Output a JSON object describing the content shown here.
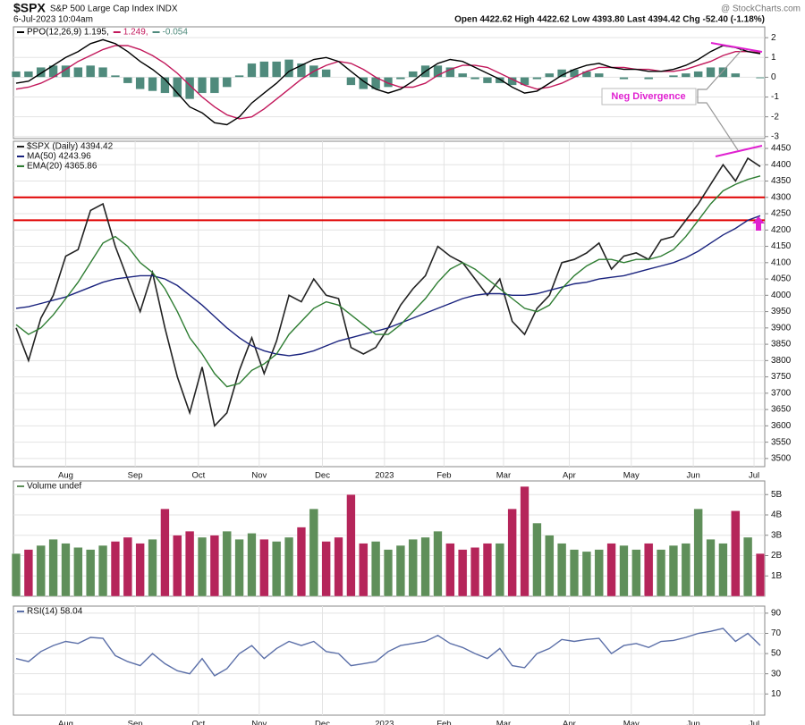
{
  "header": {
    "symbol": "$SPX",
    "name": "S&P 500 Large Cap Index INDX",
    "date": "6-Jul-2023 10:04am",
    "quote": "Open 4422.62  High 4422.62  Low 4393.80  Last 4394.42  Chg -52.40 (-1.18%)",
    "source": "@ StockCharts.com"
  },
  "chart_data": [
    {
      "type": "line",
      "legend": "row",
      "annotation": "Neg Divergence",
      "xlim": [
        0,
        60
      ],
      "ylim": [
        -3.1,
        2.55
      ],
      "yticks": [
        -3,
        -2,
        -1,
        0,
        1,
        2
      ],
      "grid": true,
      "series": [
        {
          "name": "-0.054",
          "type": "bar",
          "color": "#4f8a7c",
          "values": [
            0.3,
            0.3,
            0.5,
            0.6,
            0.6,
            0.5,
            0.6,
            0.5,
            0.1,
            -0.3,
            -0.6,
            -0.7,
            -0.8,
            -1.0,
            -1.1,
            -0.8,
            -0.8,
            -0.5,
            0.1,
            0.7,
            0.8,
            0.8,
            0.9,
            0.7,
            0.6,
            0.4,
            0.0,
            -0.4,
            -0.6,
            -0.6,
            -0.5,
            -0.1,
            0.3,
            0.6,
            0.6,
            0.5,
            0.2,
            -0.1,
            -0.3,
            -0.3,
            -0.4,
            -0.4,
            -0.1,
            0.2,
            0.4,
            0.4,
            0.3,
            0.2,
            0.0,
            -0.1,
            0.0,
            -0.1,
            0.0,
            0.1,
            0.2,
            0.3,
            0.5,
            0.5,
            0.2,
            0.0,
            -0.054
          ]
        },
        {
          "name": "1.249,",
          "type": "line",
          "color": "#c2185b",
          "values": [
            -0.6,
            -0.5,
            -0.3,
            0.0,
            0.4,
            0.8,
            1.1,
            1.4,
            1.6,
            1.6,
            1.4,
            1.1,
            0.7,
            0.2,
            -0.4,
            -1.0,
            -1.5,
            -1.9,
            -2.1,
            -2.0,
            -1.6,
            -1.1,
            -0.6,
            -0.1,
            0.3,
            0.6,
            0.8,
            0.7,
            0.4,
            0.0,
            -0.3,
            -0.5,
            -0.5,
            -0.3,
            0.1,
            0.4,
            0.6,
            0.6,
            0.5,
            0.2,
            -0.1,
            -0.4,
            -0.6,
            -0.5,
            -0.3,
            0.0,
            0.3,
            0.5,
            0.5,
            0.5,
            0.4,
            0.4,
            0.3,
            0.3,
            0.4,
            0.6,
            0.8,
            1.1,
            1.3,
            1.3,
            1.249
          ]
        },
        {
          "name": "PPO(12,26,9) 1.195,",
          "type": "line",
          "color": "#000000",
          "values": [
            -0.3,
            -0.2,
            0.2,
            0.6,
            1.0,
            1.3,
            1.7,
            1.9,
            1.7,
            1.3,
            0.8,
            0.4,
            -0.1,
            -0.8,
            -1.5,
            -1.8,
            -2.3,
            -2.4,
            -2.0,
            -1.3,
            -0.8,
            -0.3,
            0.3,
            0.6,
            0.9,
            1.0,
            0.8,
            0.3,
            -0.2,
            -0.6,
            -0.8,
            -0.6,
            -0.2,
            0.3,
            0.7,
            0.9,
            0.8,
            0.5,
            0.2,
            -0.1,
            -0.5,
            -0.8,
            -0.7,
            -0.3,
            0.1,
            0.4,
            0.6,
            0.7,
            0.5,
            0.4,
            0.4,
            0.3,
            0.3,
            0.4,
            0.6,
            0.9,
            1.3,
            1.6,
            1.5,
            1.3,
            1.195
          ]
        }
      ]
    },
    {
      "type": "line",
      "legend": "column",
      "xlim": [
        0,
        60
      ],
      "ylim": [
        3475,
        4472
      ],
      "yticks": [
        3500,
        3550,
        3600,
        3650,
        3700,
        3750,
        3800,
        3850,
        3900,
        3950,
        4000,
        4050,
        4100,
        4150,
        4200,
        4250,
        4300,
        4350,
        4400,
        4450
      ],
      "grid": true,
      "xticks": [
        {
          "value": 4,
          "label": "Aug"
        },
        {
          "value": 9.6,
          "label": "Sep"
        },
        {
          "value": 14.7,
          "label": "Oct"
        },
        {
          "value": 19.6,
          "label": "Nov"
        },
        {
          "value": 24.7,
          "label": "Dec"
        },
        {
          "value": 29.7,
          "label": "2023"
        },
        {
          "value": 34.5,
          "label": "Feb"
        },
        {
          "value": 39.3,
          "label": "Mar"
        },
        {
          "value": 44.6,
          "label": "Apr"
        },
        {
          "value": 49.6,
          "label": "May"
        },
        {
          "value": 54.6,
          "label": "Jun"
        },
        {
          "value": 59.5,
          "label": "Jul"
        }
      ],
      "hlines": [
        {
          "value": 4300,
          "color": "#e00000"
        },
        {
          "value": 4230,
          "color": "#e00000"
        }
      ],
      "series": [
        {
          "name": "$SPX (Daily) 4394.42",
          "type": "line",
          "color": "#222222",
          "values": [
            3900,
            3800,
            3930,
            4000,
            4120,
            4140,
            4260,
            4280,
            4150,
            4050,
            3950,
            4070,
            3900,
            3750,
            3640,
            3780,
            3600,
            3640,
            3770,
            3870,
            3760,
            3860,
            4000,
            3980,
            4050,
            4000,
            3990,
            3840,
            3820,
            3840,
            3900,
            3970,
            4020,
            4060,
            4150,
            4120,
            4100,
            4050,
            4000,
            4050,
            3920,
            3880,
            3960,
            4000,
            4100,
            4110,
            4130,
            4160,
            4080,
            4120,
            4130,
            4110,
            4170,
            4180,
            4230,
            4280,
            4340,
            4400,
            4350,
            4420,
            4394.42
          ]
        },
        {
          "name": "MA(50) 4243.96",
          "type": "line",
          "color": "#1a237e",
          "values": [
            3960,
            3965,
            3975,
            3985,
            3995,
            4010,
            4025,
            4040,
            4050,
            4055,
            4060,
            4060,
            4050,
            4030,
            4000,
            3970,
            3935,
            3900,
            3870,
            3845,
            3830,
            3820,
            3815,
            3820,
            3830,
            3845,
            3860,
            3870,
            3880,
            3890,
            3900,
            3915,
            3930,
            3945,
            3960,
            3975,
            3990,
            4000,
            4005,
            4005,
            4000,
            4000,
            4005,
            4015,
            4025,
            4035,
            4040,
            4050,
            4055,
            4060,
            4070,
            4080,
            4090,
            4100,
            4115,
            4135,
            4160,
            4185,
            4205,
            4230,
            4243.96
          ]
        },
        {
          "name": "EMA(20) 4365.86",
          "type": "line",
          "color": "#2e7d32",
          "values": [
            3910,
            3880,
            3900,
            3940,
            3990,
            4040,
            4100,
            4160,
            4180,
            4150,
            4100,
            4070,
            4020,
            3950,
            3870,
            3820,
            3760,
            3720,
            3730,
            3770,
            3790,
            3820,
            3880,
            3920,
            3960,
            3980,
            3970,
            3940,
            3910,
            3880,
            3880,
            3910,
            3950,
            3990,
            4040,
            4080,
            4100,
            4080,
            4050,
            4020,
            3990,
            3960,
            3950,
            3970,
            4020,
            4060,
            4090,
            4110,
            4110,
            4100,
            4110,
            4110,
            4120,
            4140,
            4180,
            4230,
            4280,
            4320,
            4340,
            4355,
            4365.86
          ]
        }
      ]
    },
    {
      "type": "bar",
      "legend": "row",
      "color_by_price": true,
      "up_color": "#5f8f5a",
      "down_color": "#b5255a",
      "xlim": [
        0,
        60
      ],
      "ylim": [
        0,
        5670000000
      ],
      "yticks": [
        {
          "value": 1000000000,
          "label": "1B"
        },
        {
          "value": 2000000000,
          "label": "2B"
        },
        {
          "value": 3000000000,
          "label": "3B"
        },
        {
          "value": 4000000000,
          "label": "4B"
        },
        {
          "value": 5000000000,
          "label": "5B"
        }
      ],
      "grid": true,
      "series": [
        {
          "name": "Volume undef",
          "type": "bar",
          "values": [
            2100000000.0,
            2300000000.0,
            2500000000.0,
            2800000000.0,
            2600000000.0,
            2400000000.0,
            2300000000.0,
            2500000000.0,
            2700000000.0,
            2900000000.0,
            2600000000.0,
            2800000000.0,
            4300000000.0,
            3000000000.0,
            3200000000.0,
            2900000000.0,
            3000000000.0,
            3200000000.0,
            2800000000.0,
            3100000000.0,
            2800000000.0,
            2700000000.0,
            2900000000.0,
            3400000000.0,
            4300000000.0,
            2700000000.0,
            2900000000.0,
            5000000000.0,
            2600000000.0,
            2700000000.0,
            2300000000.0,
            2500000000.0,
            2800000000.0,
            2900000000.0,
            3200000000.0,
            2600000000.0,
            2300000000.0,
            2400000000.0,
            2600000000.0,
            2600000000.0,
            4300000000.0,
            5400000000.0,
            3600000000.0,
            3000000000.0,
            2600000000.0,
            2300000000.0,
            2200000000.0,
            2300000000.0,
            2600000000.0,
            2500000000.0,
            2300000000.0,
            2600000000.0,
            2300000000.0,
            2500000000.0,
            2600000000.0,
            4300000000.0,
            2800000000.0,
            2600000000.0,
            4200000000.0,
            2900000000.0,
            2100000000.0
          ]
        }
      ]
    },
    {
      "type": "line",
      "legend": "row",
      "xlim": [
        0,
        60
      ],
      "ylim": [
        -11,
        97
      ],
      "yticks": [
        10,
        30,
        50,
        70,
        90
      ],
      "grid": true,
      "xticks": [
        {
          "value": 4,
          "label": "Aug"
        },
        {
          "value": 9.6,
          "label": "Sep"
        },
        {
          "value": 14.7,
          "label": "Oct"
        },
        {
          "value": 19.6,
          "label": "Nov"
        },
        {
          "value": 24.7,
          "label": "Dec"
        },
        {
          "value": 29.7,
          "label": "2023"
        },
        {
          "value": 34.5,
          "label": "Feb"
        },
        {
          "value": 39.3,
          "label": "Mar"
        },
        {
          "value": 44.6,
          "label": "Apr"
        },
        {
          "value": 49.6,
          "label": "May"
        },
        {
          "value": 54.6,
          "label": "Jun"
        },
        {
          "value": 59.5,
          "label": "Jul"
        }
      ],
      "series": [
        {
          "name": "RSI(14) 58.04",
          "type": "line",
          "color": "#5b6fa8",
          "values": [
            45,
            42,
            52,
            58,
            62,
            60,
            66,
            65,
            48,
            42,
            38,
            50,
            40,
            33,
            30,
            45,
            28,
            35,
            50,
            58,
            45,
            55,
            62,
            58,
            62,
            52,
            50,
            38,
            40,
            42,
            52,
            58,
            60,
            62,
            68,
            60,
            56,
            50,
            45,
            55,
            38,
            36,
            50,
            55,
            64,
            62,
            64,
            65,
            50,
            58,
            60,
            56,
            62,
            63,
            66,
            70,
            72,
            75,
            62,
            70,
            58.04
          ]
        }
      ]
    }
  ]
}
